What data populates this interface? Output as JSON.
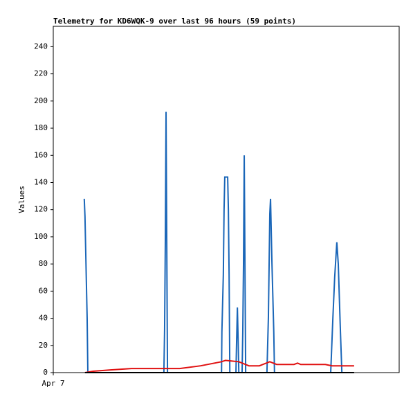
{
  "chart_data": {
    "type": "line",
    "title": "Telemetry for KD6WQK-9 over last 96 hours (59 points)",
    "y_label": "Values",
    "xlim": [
      0,
      96
    ],
    "xticks": [
      {
        "value": 0,
        "label": "Apr 7"
      }
    ],
    "ylim": [
      0,
      255
    ],
    "yticks": [
      0,
      20,
      40,
      60,
      80,
      100,
      120,
      140,
      160,
      180,
      200,
      220,
      240
    ],
    "series": [
      {
        "color": "#1a66b8",
        "x": [
          8.6,
          8.8,
          9.0,
          9.2,
          9.4,
          9.6,
          30.7,
          30.9,
          31.1,
          31.3,
          31.5,
          31.7,
          46.7,
          46.8,
          47.2,
          47.4,
          47.6,
          48.4,
          48.6,
          48.8,
          49.0,
          50.7,
          50.9,
          51.1,
          51.3,
          51.5,
          52.4,
          52.6,
          52.8,
          53.0,
          53.2,
          53.4,
          59.3,
          59.7,
          60.1,
          60.3,
          60.7,
          61.2,
          61.4,
          77.0,
          77.6,
          78.1,
          78.7,
          79.1,
          79.7,
          80.1
        ],
        "values": [
          128,
          115,
          90,
          65,
          40,
          0,
          0,
          32,
          96,
          192,
          96,
          0,
          0,
          30,
          72,
          120,
          144,
          144,
          120,
          72,
          0,
          0,
          25,
          48,
          25,
          0,
          0,
          30,
          80,
          160,
          80,
          0,
          0,
          40,
          117,
          128,
          80,
          30,
          0,
          0,
          40,
          70,
          96,
          80,
          30,
          0
        ]
      },
      {
        "color": "#e01010",
        "x": [
          8.8,
          11.1,
          15.9,
          21.7,
          35.1,
          40.9,
          46.7,
          47.8,
          51.5,
          54.3,
          57.2,
          60.1,
          62.0,
          66.8,
          67.8,
          68.7,
          75.5,
          77.4,
          83.5
        ],
        "values": [
          0,
          1,
          2,
          3,
          3,
          5,
          8,
          9,
          8,
          5,
          5,
          8,
          6,
          6,
          7,
          6,
          6,
          5,
          5
        ]
      },
      {
        "color": "#000000",
        "x": [
          8.8,
          83.5
        ],
        "values": [
          0,
          0
        ]
      }
    ]
  }
}
